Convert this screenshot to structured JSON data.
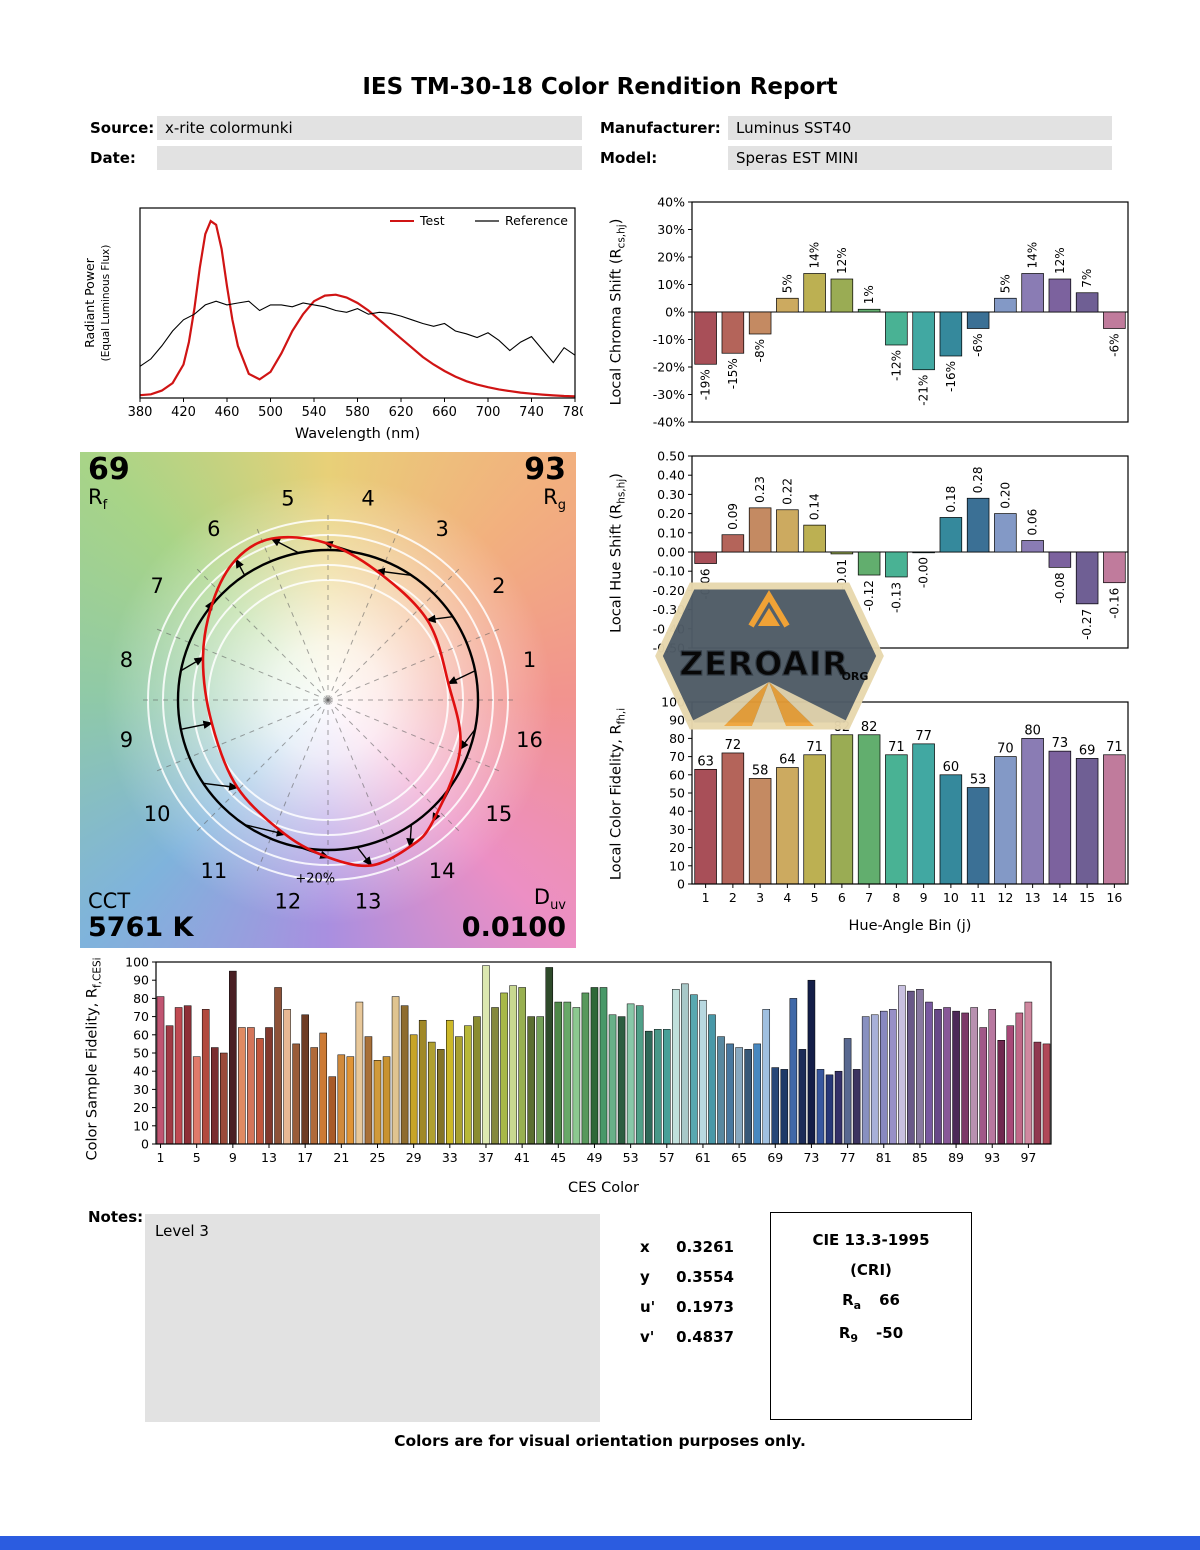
{
  "title": "IES TM-30-18 Color Rendition Report",
  "header": {
    "source_label": "Source:",
    "source_value": "x-rite colormunki",
    "manufacturer_label": "Manufacturer:",
    "manufacturer_value": "Luminus SST40",
    "date_label": "Date:",
    "date_value": "",
    "model_label": "Model:",
    "model_value": "Speras EST MINI"
  },
  "labels": {
    "chroma_pre": "Local Chroma Shift (R",
    "chroma_sub": "cs,hj",
    "chroma_post": ")",
    "hue_pre": "Local Hue Shift (R",
    "hue_sub": "hs,hj",
    "hue_post": ")",
    "fid_pre": "Local Color Fidelity, R",
    "fid_sub": "fh,i",
    "fid_post": "",
    "ces_pre": "Color Sample Fidelity, R",
    "ces_sub": "f,CESi",
    "ces_post": ""
  },
  "cvg_panel": {
    "rf_value": "69",
    "rf_main": "R",
    "rf_sub": "f",
    "rg_value": "93",
    "rg_main": "R",
    "rg_sub": "g",
    "cct_label": "CCT",
    "cct_value": "5761 K",
    "duv_main": "D",
    "duv_sub": "uv",
    "duv_value": "0.0100",
    "ring_label": "+20%"
  },
  "watermark": {
    "line1": "ZEROAIR",
    "line2": "ORG"
  },
  "notes": {
    "label": "Notes:",
    "value": "Level 3"
  },
  "chromaticity": {
    "rows": [
      {
        "label": "x",
        "value": "0.3261"
      },
      {
        "label": "y",
        "value": "0.3554"
      },
      {
        "label": "u'",
        "value": "0.1973"
      },
      {
        "label": "v'",
        "value": "0.4837"
      }
    ]
  },
  "cri_box": {
    "title": "CIE 13.3-1995",
    "subtitle": "(CRI)",
    "ra_label": "R",
    "ra_sub": "a",
    "ra_value": "66",
    "r9_label": "R",
    "r9_sub": "9",
    "r9_value": "-50"
  },
  "footer": "Colors are for visual orientation purposes only.",
  "bin_colors": [
    "#a84f58",
    "#b4645a",
    "#c48a62",
    "#ccaa60",
    "#bcb052",
    "#9aac54",
    "#62ae6e",
    "#49b294",
    "#41a8a2",
    "#35899c",
    "#3b7095",
    "#8399c6",
    "#8a7cb4",
    "#7c629e",
    "#6f5f94",
    "#c07b9c"
  ],
  "ces_colors": [
    "#c05572",
    "#a03a44",
    "#c04a52",
    "#8e3038",
    "#e07a6a",
    "#b24a3e",
    "#7a2e30",
    "#9a4a3a",
    "#4a2024",
    "#e08a62",
    "#d4755a",
    "#c2563c",
    "#81382c",
    "#8e5238",
    "#e8b894",
    "#9a5c38",
    "#6e3c24",
    "#b06a3a",
    "#cc7a34",
    "#a85a28",
    "#d08a3c",
    "#e09436",
    "#e8c89a",
    "#a87038",
    "#d09a3a",
    "#c89230",
    "#e0c490",
    "#8e6c2e",
    "#c8a428",
    "#a08828",
    "#b0a030",
    "#847428",
    "#ccb828",
    "#a8a030",
    "#b8b838",
    "#8a8c30",
    "#dce8b0",
    "#84883c",
    "#a8b848",
    "#c8d890",
    "#98b050",
    "#5c6e30",
    "#74a058",
    "#2e4a2a",
    "#4e8848",
    "#68a868",
    "#8cc890",
    "#58985c",
    "#2e6838",
    "#489868",
    "#68b088",
    "#2c5e40",
    "#88c8a8",
    "#50a088",
    "#2e6858",
    "#489888",
    "#48a098",
    "#c0e0dc",
    "#a8c8c8",
    "#58a8b0",
    "#b8d8e0",
    "#4898a8",
    "#5888a0",
    "#4878a0",
    "#88a8c0",
    "#385878",
    "#4888c0",
    "#a0c0e0",
    "#284878",
    "#1e3a68",
    "#4068a8",
    "#1c2c58",
    "#141e48",
    "#3858a0",
    "#283878",
    "#343068",
    "#586890",
    "#3c3460",
    "#8890c0",
    "#a8b0d8",
    "#8888c0",
    "#9890c8",
    "#c8c0e0",
    "#685888",
    "#8878a0",
    "#7858a0",
    "#684888",
    "#885898",
    "#4c2858",
    "#7c3868",
    "#b890b0",
    "#a05888",
    "#b878a0",
    "#702850",
    "#a84878",
    "#c06888",
    "#d088a0",
    "#903850",
    "#b04858"
  ],
  "chart_data": [
    {
      "id": "spd",
      "type": "line",
      "xlabel": "Wavelength (nm)",
      "ylabel": "Radiant Power",
      "ylabel2": "(Equal Luminous Flux)",
      "xlim": [
        380,
        780
      ],
      "xticks": [
        380,
        420,
        460,
        500,
        540,
        580,
        620,
        660,
        700,
        740,
        780
      ],
      "legend": [
        {
          "name": "Test",
          "color": "#d01414"
        },
        {
          "name": "Reference",
          "color": "#000000"
        }
      ],
      "series": [
        {
          "name": "Test",
          "color": "#d01414",
          "x": [
            380,
            390,
            400,
            410,
            420,
            425,
            430,
            435,
            440,
            445,
            450,
            455,
            460,
            465,
            470,
            480,
            490,
            500,
            510,
            520,
            530,
            540,
            550,
            560,
            570,
            580,
            590,
            600,
            610,
            620,
            630,
            640,
            650,
            660,
            670,
            680,
            690,
            700,
            710,
            720,
            730,
            740,
            750,
            760,
            770,
            780
          ],
          "y": [
            0.015,
            0.02,
            0.04,
            0.08,
            0.18,
            0.3,
            0.48,
            0.7,
            0.88,
            0.95,
            0.93,
            0.8,
            0.6,
            0.42,
            0.28,
            0.13,
            0.1,
            0.14,
            0.24,
            0.36,
            0.45,
            0.52,
            0.55,
            0.555,
            0.54,
            0.51,
            0.47,
            0.42,
            0.37,
            0.32,
            0.27,
            0.22,
            0.18,
            0.145,
            0.115,
            0.09,
            0.072,
            0.058,
            0.046,
            0.037,
            0.029,
            0.023,
            0.018,
            0.014,
            0.011,
            0.009
          ]
        },
        {
          "name": "Reference",
          "color": "#000000",
          "x": [
            380,
            390,
            400,
            410,
            420,
            430,
            440,
            450,
            460,
            470,
            480,
            490,
            500,
            510,
            520,
            530,
            540,
            550,
            560,
            570,
            580,
            590,
            600,
            610,
            620,
            630,
            640,
            650,
            660,
            670,
            680,
            690,
            700,
            710,
            720,
            730,
            740,
            750,
            760,
            770,
            780
          ],
          "y": [
            0.17,
            0.21,
            0.28,
            0.36,
            0.42,
            0.45,
            0.5,
            0.52,
            0.5,
            0.51,
            0.52,
            0.47,
            0.5,
            0.5,
            0.49,
            0.51,
            0.5,
            0.49,
            0.47,
            0.46,
            0.48,
            0.45,
            0.46,
            0.455,
            0.44,
            0.42,
            0.4,
            0.385,
            0.4,
            0.36,
            0.345,
            0.325,
            0.35,
            0.31,
            0.255,
            0.3,
            0.33,
            0.26,
            0.19,
            0.27,
            0.23
          ]
        }
      ]
    },
    {
      "id": "chroma_shift",
      "type": "bar",
      "ylabel": "Local Chroma Shift (Rcs,hj)",
      "categories": [
        1,
        2,
        3,
        4,
        5,
        6,
        7,
        8,
        9,
        10,
        11,
        12,
        13,
        14,
        15,
        16
      ],
      "values": [
        -19,
        -15,
        -8,
        5,
        14,
        12,
        1,
        -12,
        -21,
        -16,
        -6,
        5,
        14,
        12,
        7,
        -6
      ],
      "bar_labels": [
        "-19%",
        "-15%",
        "-8%",
        "5%",
        "14%",
        "12%",
        "1%",
        "-12%",
        "-21%",
        "-16%",
        "-6%",
        "5%",
        "14%",
        "12%",
        "7%",
        "-6%"
      ],
      "ylim": [
        -40,
        40
      ],
      "ytick_step": 10
    },
    {
      "id": "hue_shift",
      "type": "bar",
      "ylabel": "Local Hue Shift (Rhs,hj)",
      "categories": [
        1,
        2,
        3,
        4,
        5,
        6,
        7,
        8,
        9,
        10,
        11,
        12,
        13,
        14,
        15,
        16
      ],
      "values": [
        -0.06,
        0.09,
        0.23,
        0.22,
        0.14,
        -0.01,
        -0.12,
        -0.13,
        0,
        0.18,
        0.28,
        0.2,
        0.06,
        -0.08,
        -0.27,
        -0.16
      ],
      "bar_labels": [
        "-0.06",
        "0.09",
        "0.23",
        "0.22",
        "0.14",
        "-0.01",
        "-0.12",
        "-0.13",
        "-0.00",
        "0.18",
        "0.28",
        "0.20",
        "0.06",
        "-0.08",
        "-0.27",
        "-0.16"
      ],
      "ylim": [
        -0.5,
        0.5
      ],
      "ytick_step": 0.1
    },
    {
      "id": "local_fidelity",
      "type": "bar",
      "xlabel": "Hue-Angle Bin (j)",
      "ylabel": "Local Color Fidelity, Rfh,i",
      "categories": [
        1,
        2,
        3,
        4,
        5,
        6,
        7,
        8,
        9,
        10,
        11,
        12,
        13,
        14,
        15,
        16
      ],
      "values": [
        63,
        72,
        58,
        64,
        71,
        82,
        82,
        71,
        77,
        60,
        53,
        70,
        80,
        73,
        69,
        71
      ],
      "ylim": [
        0,
        100
      ],
      "ytick_step": 10
    },
    {
      "id": "ces_fidelity",
      "type": "bar",
      "xlabel": "CES Color",
      "ylabel": "Color Sample Fidelity, Rf,CESi",
      "xticks": [
        1,
        5,
        9,
        13,
        17,
        21,
        25,
        29,
        33,
        37,
        41,
        45,
        49,
        53,
        57,
        61,
        65,
        69,
        73,
        77,
        81,
        85,
        89,
        93,
        97
      ],
      "values": [
        81,
        65,
        75,
        76,
        48,
        74,
        53,
        50,
        95,
        64,
        64,
        58,
        64,
        86,
        74,
        55,
        71,
        53,
        61,
        37,
        49,
        48,
        78,
        59,
        46,
        48,
        81,
        76,
        60,
        68,
        56,
        52,
        68,
        59,
        65,
        70,
        98,
        75,
        83,
        87,
        86,
        70,
        70,
        97,
        78,
        78,
        75,
        83,
        86,
        86,
        71,
        70,
        77,
        76,
        62,
        63,
        63,
        85,
        88,
        82,
        79,
        71,
        59,
        55,
        53,
        52,
        55,
        74,
        42,
        41,
        80,
        52,
        90,
        41,
        38,
        40,
        58,
        41,
        70,
        71,
        73,
        74,
        87,
        84,
        85,
        78,
        74,
        75,
        73,
        72,
        75,
        64,
        74,
        57,
        65,
        72,
        78,
        56,
        55
      ],
      "ylim": [
        0,
        100
      ],
      "ytick_step": 10
    },
    {
      "id": "cvg",
      "type": "color-vector-graphic",
      "rf": 69,
      "rg": 93,
      "cct": "5761 K",
      "duv": "0.0100",
      "bins": [
        1,
        2,
        3,
        4,
        5,
        6,
        7,
        8,
        9,
        10,
        11,
        12,
        13,
        14,
        15,
        16
      ]
    }
  ]
}
